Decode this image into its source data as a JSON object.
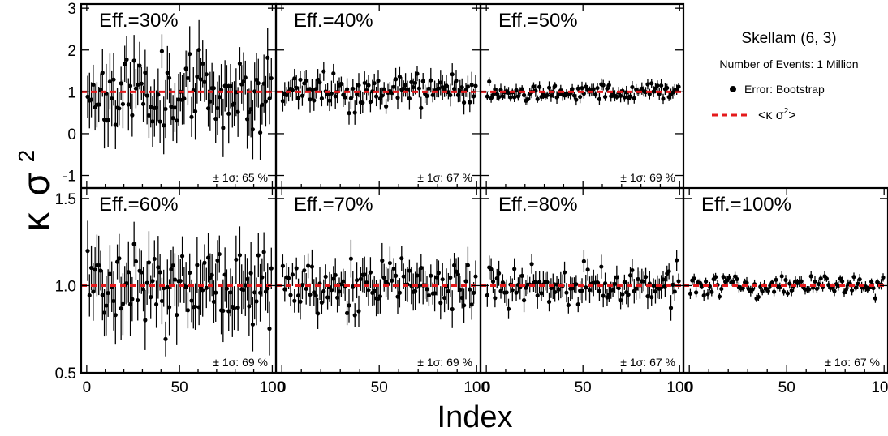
{
  "chart_data": {
    "type": "scatter",
    "ylabel_symbol": "κ",
    "ylabel_symbol2": "σ",
    "ylabel_sup": "2",
    "xlabel": "Index",
    "legend": {
      "title": "Skellam (6, 3)",
      "subtitle": "Number of Events: 1 Million",
      "entries": [
        {
          "label": "Error: Bootstrap",
          "marker": "circle",
          "color": "#000000"
        },
        {
          "label": "<κ σ",
          "label_sup": "2",
          "label_end": ">",
          "marker": "dashed-line",
          "color": "#e41a1c"
        }
      ],
      "placement": "top-right"
    },
    "mean_value": 1.0,
    "rows": [
      {
        "ylim": [
          -1.3,
          3.1
        ],
        "yticks": [
          -1,
          0,
          1,
          2,
          3
        ],
        "ytick_labels": [
          "-1",
          "0",
          "1",
          "2",
          "3"
        ]
      },
      {
        "ylim": [
          0.5,
          1.56
        ],
        "yticks": [
          0.5,
          1.0,
          1.5
        ],
        "ytick_labels": [
          "0.5",
          "1.0",
          "1.5"
        ]
      }
    ],
    "xlim": [
      -3,
      102
    ],
    "xticks": [
      0,
      50,
      100
    ],
    "xtick_labels": [
      [
        "0",
        "50",
        "100"
      ],
      [
        "0",
        "50",
        "100"
      ],
      [
        "0",
        "50",
        "100"
      ],
      [
        "0",
        "50",
        "100"
      ]
    ],
    "panels": [
      {
        "label": "Eff.=30%",
        "sigma_text": "± 1σ: 65 %",
        "row": 0,
        "col": 0,
        "n_points": 100,
        "base_error": 0.55,
        "spread": 0.42,
        "seed": 11
      },
      {
        "label": "Eff.=40%",
        "sigma_text": "± 1σ: 67 %",
        "row": 0,
        "col": 1,
        "n_points": 100,
        "base_error": 0.24,
        "spread": 0.2,
        "seed": 23
      },
      {
        "label": "Eff.=50%",
        "sigma_text": "± 1σ: 69 %",
        "row": 0,
        "col": 2,
        "n_points": 100,
        "base_error": 0.12,
        "spread": 0.1,
        "seed": 37
      },
      {
        "label": "Eff.=60%",
        "sigma_text": "± 1σ: 69 %",
        "row": 1,
        "col": 0,
        "n_points": 100,
        "base_error": 0.14,
        "spread": 0.12,
        "seed": 41
      },
      {
        "label": "Eff.=70%",
        "sigma_text": "± 1σ: 69 %",
        "row": 1,
        "col": 1,
        "n_points": 100,
        "base_error": 0.085,
        "spread": 0.08,
        "seed": 53
      },
      {
        "label": "Eff.=80%",
        "sigma_text": "± 1σ: 67 %",
        "row": 1,
        "col": 2,
        "n_points": 100,
        "base_error": 0.06,
        "spread": 0.055,
        "seed": 67
      },
      {
        "label": "Eff.=100%",
        "sigma_text": "± 1σ: 67 %",
        "row": 1,
        "col": 3,
        "n_points": 100,
        "base_error": 0.025,
        "spread": 0.03,
        "seed": 79
      }
    ]
  }
}
